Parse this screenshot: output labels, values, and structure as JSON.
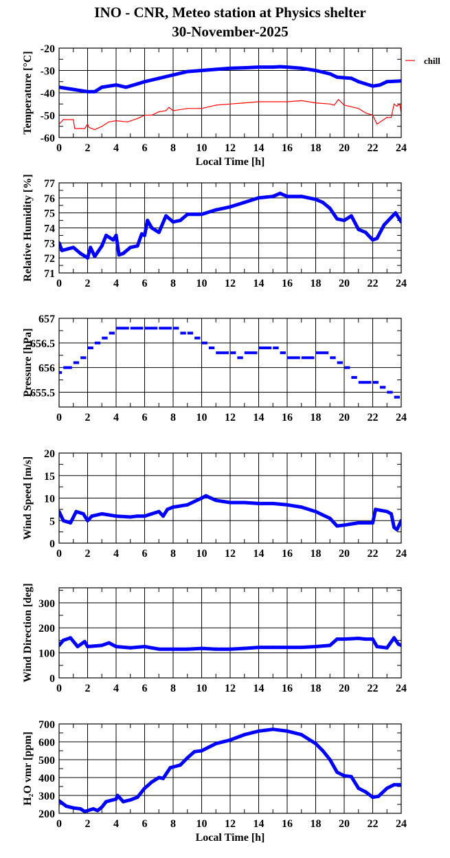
{
  "title": {
    "line1": "INO - CNR, Meteo station at Physics shelter",
    "line2": "30-November-2025"
  },
  "colors": {
    "primary_series": "#0000ff",
    "chill": "#ff0000",
    "grid": "#000000"
  },
  "chart_data": [
    {
      "type": "line",
      "id": "temperature",
      "xlabel": "Local Time [h]",
      "ylabel": "Temperature [°C]",
      "xlim": [
        0,
        24
      ],
      "xticks": [
        0,
        2,
        4,
        6,
        8,
        10,
        12,
        14,
        16,
        18,
        20,
        22,
        24
      ],
      "ylim": [
        -60,
        -20
      ],
      "yticks": [
        -60,
        -50,
        -40,
        -30,
        -20
      ],
      "grid": true,
      "legend": {
        "position": "right-outside",
        "entries": [
          "chill"
        ]
      },
      "series": [
        {
          "color": "#0000ff",
          "style": "thick",
          "x": [
            0,
            1,
            2,
            2.5,
            3,
            4,
            4.7,
            5.5,
            6,
            7,
            8,
            9,
            10,
            11,
            12,
            13,
            14,
            15,
            15.5,
            16,
            17,
            18,
            19,
            19.5,
            20.5,
            21,
            22,
            22.5,
            23,
            24
          ],
          "y": [
            -37.5,
            -38.5,
            -39.5,
            -39.5,
            -37.5,
            -36.5,
            -37.5,
            -36,
            -35,
            -33.5,
            -32,
            -30.5,
            -30,
            -29.5,
            -29,
            -28.8,
            -28.5,
            -28.5,
            -28.3,
            -28.5,
            -29,
            -30,
            -31.5,
            -33,
            -33.5,
            -35,
            -37,
            -36.5,
            -35,
            -34.7
          ]
        },
        {
          "name": "chill",
          "color": "#ff0000",
          "style": "thin",
          "x": [
            0,
            0.3,
            1,
            1.1,
            1.8,
            2,
            2.1,
            2.5,
            3,
            3.5,
            4,
            4.8,
            5.5,
            6,
            6.5,
            7,
            7.5,
            7.7,
            8,
            9,
            10,
            11,
            12,
            13,
            14,
            15,
            16,
            17,
            18,
            19,
            19.3,
            19.6,
            20,
            21,
            21.5,
            22,
            22.3,
            23,
            23.3,
            23.5,
            23.7,
            23.9,
            24
          ],
          "y": [
            -54,
            -52,
            -52,
            -56,
            -56,
            -54,
            -55.5,
            -56.5,
            -55,
            -53,
            -52.5,
            -53,
            -51.5,
            -50,
            -50,
            -48.5,
            -48,
            -46.5,
            -48,
            -47,
            -47,
            -45.5,
            -45,
            -44.5,
            -44,
            -44,
            -44,
            -43.5,
            -44.5,
            -45,
            -45.5,
            -43,
            -45.5,
            -47,
            -49,
            -50,
            -54,
            -51,
            -51,
            -45,
            -46,
            -45,
            -49
          ]
        }
      ]
    },
    {
      "type": "line",
      "id": "humidity",
      "ylabel": "Relative Humidity [%]",
      "xlim": [
        0,
        24
      ],
      "xticks": [
        0,
        2,
        4,
        6,
        8,
        10,
        12,
        14,
        16,
        18,
        20,
        22,
        24
      ],
      "ylim": [
        71,
        77
      ],
      "yticks": [
        71,
        72,
        73,
        74,
        75,
        76,
        77
      ],
      "grid": true,
      "series": [
        {
          "color": "#0000ff",
          "style": "thick",
          "x": [
            0,
            0.2,
            1,
            1.5,
            2,
            2.2,
            2.5,
            3,
            3.3,
            3.8,
            4,
            4.2,
            4.5,
            5,
            5.5,
            5.8,
            6,
            6.2,
            6.5,
            7,
            7.5,
            8,
            8.5,
            9,
            10,
            11,
            12,
            13,
            14,
            15,
            15.5,
            16,
            17,
            18,
            18.5,
            19,
            19.5,
            20,
            20.5,
            21,
            21.5,
            22,
            22.3,
            22.8,
            23.3,
            23.6,
            24
          ],
          "y": [
            73,
            72.5,
            72.7,
            72.3,
            72,
            72.7,
            72.1,
            72.8,
            73.5,
            73.2,
            73.5,
            72.2,
            72.3,
            72.7,
            72.8,
            73.6,
            73.5,
            74.5,
            74,
            73.7,
            74.8,
            74.4,
            74.5,
            74.9,
            74.9,
            75.2,
            75.4,
            75.7,
            76,
            76.1,
            76.3,
            76.1,
            76.1,
            75.9,
            75.7,
            75.3,
            74.6,
            74.5,
            74.8,
            73.9,
            73.7,
            73.2,
            73.3,
            74.2,
            74.7,
            75,
            74.4
          ]
        }
      ]
    },
    {
      "type": "scatter",
      "id": "pressure",
      "ylabel": "Pressure [hPa]",
      "xlim": [
        0,
        24
      ],
      "xticks": [
        0,
        2,
        4,
        6,
        8,
        10,
        12,
        14,
        16,
        18,
        20,
        22,
        24
      ],
      "ylim": [
        655.2,
        657
      ],
      "yticks": [
        655.5,
        656,
        656.5,
        657
      ],
      "grid": true,
      "series": [
        {
          "color": "#0000ff",
          "style": "steps",
          "x": [
            0,
            0.3,
            1,
            1.5,
            2,
            2.5,
            3,
            3.5,
            4,
            5,
            6,
            7,
            8,
            8.5,
            9,
            9.5,
            10,
            10.5,
            11,
            12,
            12.5,
            13,
            14,
            15,
            15.5,
            16,
            17,
            18,
            19,
            19.5,
            20,
            20.5,
            21,
            22,
            22.5,
            23,
            23.5,
            24
          ],
          "y": [
            655.9,
            656,
            656.1,
            656.2,
            656.4,
            656.5,
            656.6,
            656.7,
            656.8,
            656.8,
            656.8,
            656.8,
            656.8,
            656.7,
            656.7,
            656.6,
            656.5,
            656.4,
            656.3,
            656.3,
            656.2,
            656.3,
            656.4,
            656.4,
            656.3,
            656.2,
            656.2,
            656.3,
            656.2,
            656.1,
            656,
            655.8,
            655.7,
            655.7,
            655.6,
            655.5,
            655.4,
            655.3
          ]
        }
      ]
    },
    {
      "type": "line",
      "id": "wind-speed",
      "ylabel": "Wind Speed [m/s]",
      "xlim": [
        0,
        24
      ],
      "xticks": [
        0,
        2,
        4,
        6,
        8,
        10,
        12,
        14,
        16,
        18,
        20,
        22,
        24
      ],
      "ylim": [
        0,
        20
      ],
      "yticks": [
        0,
        5,
        10,
        15,
        20
      ],
      "grid": true,
      "series": [
        {
          "color": "#0000ff",
          "style": "thick",
          "x": [
            0,
            0.3,
            0.8,
            1.2,
            1.7,
            2,
            2.3,
            3,
            4,
            5,
            5.5,
            6,
            6.5,
            7,
            7.3,
            7.6,
            8,
            9,
            10,
            10.3,
            11,
            12,
            13,
            14,
            15,
            16,
            17,
            18,
            19,
            19.5,
            20,
            21,
            22,
            22.2,
            23,
            23.3,
            23.5,
            23.7,
            24
          ],
          "y": [
            7,
            5,
            4.5,
            7,
            6.5,
            5,
            6,
            6.5,
            6,
            5.8,
            6,
            6,
            6.5,
            7,
            6,
            7.5,
            8,
            8.5,
            10,
            10.5,
            9.5,
            9,
            9,
            8.8,
            8.8,
            8.5,
            8,
            7,
            5.5,
            3.8,
            4,
            4.5,
            4.5,
            7.5,
            7,
            6.5,
            3.5,
            3,
            5
          ]
        }
      ]
    },
    {
      "type": "line",
      "id": "wind-direction",
      "ylabel": "Wind Direction [deg]",
      "xlim": [
        0,
        24
      ],
      "xticks": [
        0,
        2,
        4,
        6,
        8,
        10,
        12,
        14,
        16,
        18,
        20,
        22,
        24
      ],
      "ylim": [
        0,
        360
      ],
      "yticks": [
        0,
        100,
        200,
        300
      ],
      "grid": true,
      "series": [
        {
          "color": "#0000ff",
          "style": "thick",
          "x": [
            0,
            0.3,
            0.8,
            1.3,
            1.8,
            2,
            3,
            3.5,
            4,
            5,
            6,
            7,
            8,
            9,
            10,
            11,
            12,
            13,
            14,
            15,
            16,
            17,
            18,
            19,
            19.5,
            20,
            21,
            21.5,
            22,
            22.3,
            23,
            23.5,
            23.8,
            24
          ],
          "y": [
            130,
            150,
            160,
            125,
            145,
            125,
            130,
            140,
            125,
            120,
            125,
            115,
            115,
            115,
            118,
            115,
            115,
            118,
            122,
            122,
            122,
            122,
            125,
            130,
            155,
            155,
            158,
            155,
            155,
            125,
            120,
            160,
            135,
            130
          ]
        }
      ]
    },
    {
      "type": "line",
      "id": "h2o-vmr",
      "xlabel": "Local Time [h]",
      "ylabel": "H₂O vmr [ppm]",
      "xlim": [
        0,
        24
      ],
      "xticks": [
        0,
        2,
        4,
        6,
        8,
        10,
        12,
        14,
        16,
        18,
        20,
        22,
        24
      ],
      "ylim": [
        200,
        700
      ],
      "yticks": [
        200,
        300,
        400,
        500,
        600,
        700
      ],
      "grid": true,
      "series": [
        {
          "color": "#0000ff",
          "style": "thick",
          "x": [
            0,
            0.5,
            1,
            1.5,
            1.8,
            2,
            2.4,
            2.7,
            3,
            3.3,
            4,
            4.1,
            4.5,
            5,
            5.5,
            6,
            6.5,
            7,
            7.3,
            7.8,
            8.5,
            9,
            9.5,
            10,
            11,
            12,
            13,
            14,
            14.5,
            15,
            16,
            17,
            18,
            18.5,
            19,
            19.5,
            20,
            20.5,
            21,
            21.5,
            22,
            22.4,
            23,
            23.5,
            24
          ],
          "y": [
            270,
            240,
            230,
            225,
            210,
            215,
            225,
            215,
            235,
            265,
            280,
            300,
            265,
            275,
            290,
            340,
            375,
            400,
            395,
            455,
            470,
            510,
            545,
            550,
            590,
            610,
            640,
            660,
            665,
            670,
            660,
            640,
            590,
            550,
            500,
            430,
            410,
            405,
            340,
            320,
            290,
            295,
            340,
            360,
            360
          ]
        }
      ]
    }
  ]
}
